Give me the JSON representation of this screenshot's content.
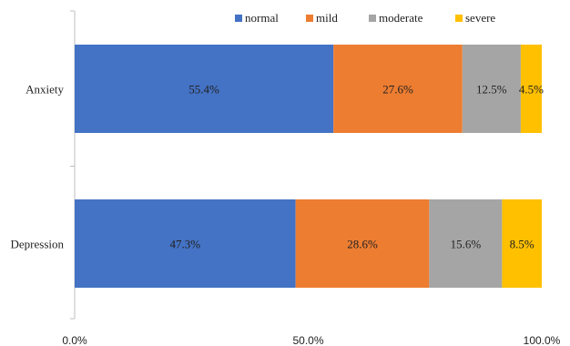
{
  "chart_data": {
    "type": "bar",
    "orientation": "horizontal",
    "stacked": true,
    "categories": [
      "Anxiety",
      "Depression"
    ],
    "series": [
      {
        "name": "normal",
        "values": [
          55.4,
          47.3
        ],
        "color": "#4472c4"
      },
      {
        "name": "mild",
        "values": [
          27.6,
          28.6
        ],
        "color": "#ed7d31"
      },
      {
        "name": "moderate",
        "values": [
          12.5,
          15.6
        ],
        "color": "#a5a5a5"
      },
      {
        "name": "severe",
        "values": [
          4.5,
          8.5
        ],
        "color": "#ffc000"
      }
    ],
    "data_labels": [
      [
        "55.4%",
        "27.6%",
        "12.5%",
        "4.5%"
      ],
      [
        "47.3%",
        "28.6%",
        "15.6%",
        "8.5%"
      ]
    ],
    "xlim": [
      0,
      100
    ],
    "xticks": [
      0,
      50,
      100
    ],
    "xtick_labels": [
      "0.0%",
      "50.0%",
      "100.0%"
    ],
    "grid": false,
    "legend_position": "top"
  }
}
